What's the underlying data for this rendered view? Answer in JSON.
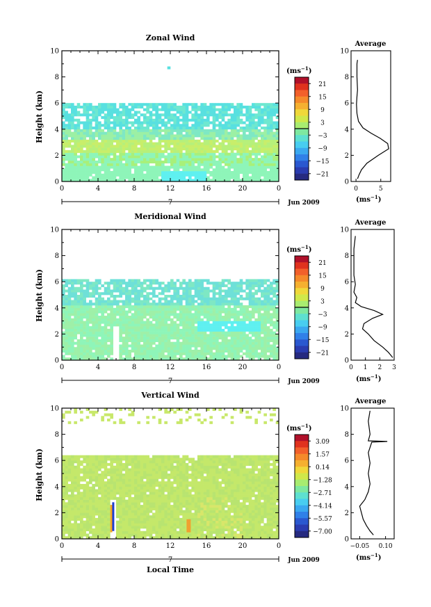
{
  "figure": {
    "xtitle_bottom": "Local Time",
    "date_label": "Jun 2009",
    "day_label": "7",
    "unit_label": "(ms",
    "unit_exp": "−1",
    "height_label": "Height (km)"
  },
  "chart_data": [
    {
      "type": "heatmap",
      "title": "Zonal Wind",
      "xlabel": "Local Time",
      "ylabel": "Height (km)",
      "xlim": [
        0,
        24
      ],
      "ylim": [
        0,
        10
      ],
      "x_ticks": [
        "0",
        "4",
        "8",
        "12",
        "16",
        "20",
        "0"
      ],
      "y_ticks": [
        "0",
        "2",
        "4",
        "6",
        "8",
        "10"
      ],
      "colorbar": {
        "unit": "(ms−1)",
        "ticks": [
          "21",
          "15",
          "9",
          "3",
          "−3",
          "−9",
          "−15",
          "−21"
        ]
      },
      "average_profile": {
        "title": "Average",
        "xlabel": "(ms−1)",
        "xticks": [
          "0",
          "5"
        ],
        "xlim": [
          -1,
          7
        ],
        "points": [
          [
            0.3,
            0.2
          ],
          [
            0.6,
            0.5
          ],
          [
            1.1,
            0.9
          ],
          [
            2.2,
            1.4
          ],
          [
            4.5,
            2.0
          ],
          [
            6.6,
            2.5
          ],
          [
            6.4,
            2.9
          ],
          [
            4.9,
            3.3
          ],
          [
            3.0,
            3.7
          ],
          [
            1.4,
            4.1
          ],
          [
            0.5,
            4.6
          ],
          [
            0.2,
            5.2
          ],
          [
            0.1,
            5.9
          ],
          [
            0.2,
            6.5
          ],
          [
            0.3,
            7.0
          ],
          [
            0.2,
            8.0
          ],
          [
            0.2,
            9.0
          ],
          [
            0.3,
            9.3
          ]
        ]
      }
    },
    {
      "type": "heatmap",
      "title": "Meridional Wind",
      "xlabel": "Local Time",
      "ylabel": "Height (km)",
      "xlim": [
        0,
        24
      ],
      "ylim": [
        0,
        10
      ],
      "x_ticks": [
        "0",
        "4",
        "8",
        "12",
        "16",
        "20",
        "0"
      ],
      "y_ticks": [
        "0",
        "2",
        "4",
        "6",
        "8",
        "10"
      ],
      "colorbar": {
        "unit": "(ms−1)",
        "ticks": [
          "21",
          "15",
          "9",
          "3",
          "−3",
          "−9",
          "−15",
          "−21"
        ]
      },
      "average_profile": {
        "title": "Average",
        "xlabel": "(ms−1)",
        "xticks": [
          "0",
          "1",
          "2",
          "3"
        ],
        "xlim": [
          0,
          3
        ],
        "points": [
          [
            2.9,
            0.2
          ],
          [
            2.6,
            0.6
          ],
          [
            2.2,
            1.0
          ],
          [
            1.6,
            1.5
          ],
          [
            1.2,
            2.0
          ],
          [
            0.8,
            2.4
          ],
          [
            0.9,
            2.8
          ],
          [
            1.5,
            3.2
          ],
          [
            2.2,
            3.5
          ],
          [
            1.6,
            3.8
          ],
          [
            0.7,
            4.1
          ],
          [
            0.3,
            4.4
          ],
          [
            0.4,
            4.8
          ],
          [
            0.2,
            5.2
          ],
          [
            0.3,
            5.8
          ],
          [
            0.2,
            6.5
          ],
          [
            0.2,
            7.5
          ],
          [
            0.2,
            8.5
          ],
          [
            0.3,
            9.5
          ]
        ]
      }
    },
    {
      "type": "heatmap",
      "title": "Vertical Wind",
      "xlabel": "Local Time",
      "ylabel": "Height (km)",
      "xlim": [
        0,
        24
      ],
      "ylim": [
        0,
        10
      ],
      "x_ticks": [
        "0",
        "4",
        "8",
        "12",
        "16",
        "20",
        "0"
      ],
      "y_ticks": [
        "0",
        "2",
        "4",
        "6",
        "8",
        "10"
      ],
      "colorbar": {
        "unit": "(ms−1)",
        "ticks": [
          "3.09",
          "1.57",
          "0.14",
          "−1.28",
          "−2.71",
          "−4.14",
          "−5.57",
          "−7.00"
        ]
      },
      "average_profile": {
        "title": "Average",
        "xlabel": "(ms−1)",
        "xticks": [
          "−0.05",
          "0.10"
        ],
        "xlim": [
          -0.1,
          0.15
        ],
        "points": [
          [
            0.03,
            0.3
          ],
          [
            0.01,
            0.6
          ],
          [
            -0.01,
            1.0
          ],
          [
            -0.03,
            1.5
          ],
          [
            -0.04,
            2.0
          ],
          [
            -0.05,
            2.5
          ],
          [
            -0.02,
            3.0
          ],
          [
            0.0,
            3.6
          ],
          [
            0.01,
            4.2
          ],
          [
            0.0,
            5.0
          ],
          [
            0.01,
            5.8
          ],
          [
            0.0,
            6.6
          ],
          [
            0.01,
            7.0
          ],
          [
            0.02,
            7.4
          ],
          [
            0.11,
            7.45
          ],
          [
            0.0,
            7.5
          ],
          [
            0.01,
            8.0
          ],
          [
            0.0,
            9.0
          ],
          [
            0.01,
            9.8
          ]
        ]
      }
    }
  ]
}
